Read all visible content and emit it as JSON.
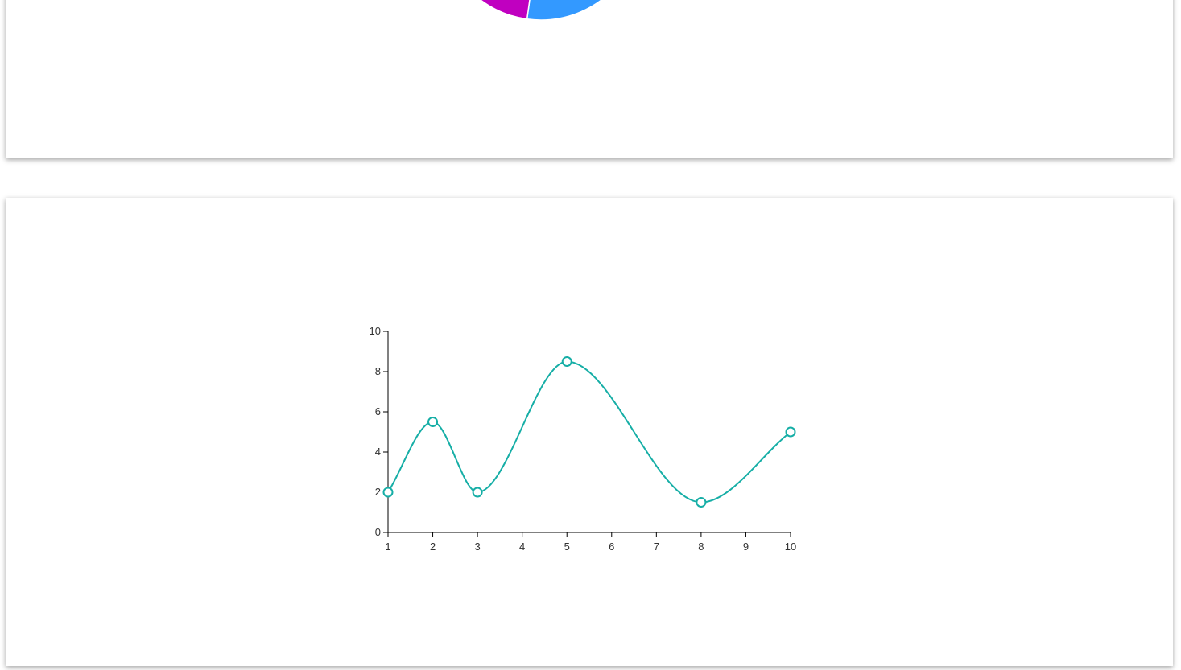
{
  "top_card": {
    "pie_colors": [
      "#c000c0",
      "#3399ff"
    ]
  },
  "chart_data": {
    "type": "line",
    "x": [
      1,
      2,
      3,
      5,
      8,
      10
    ],
    "y": [
      2,
      5.5,
      2,
      8.5,
      1.5,
      5
    ],
    "xlim": [
      1,
      10
    ],
    "ylim": [
      0,
      10
    ],
    "x_ticks": [
      "1",
      "2",
      "3",
      "4",
      "5",
      "6",
      "7",
      "8",
      "9",
      "10"
    ],
    "y_ticks": [
      "0",
      "2",
      "4",
      "6",
      "8",
      "10"
    ],
    "curve": "smooth",
    "line_color": "#16aea6",
    "marker": "hollow-circle",
    "title": "",
    "xlabel": "",
    "ylabel": "",
    "grid": false
  }
}
